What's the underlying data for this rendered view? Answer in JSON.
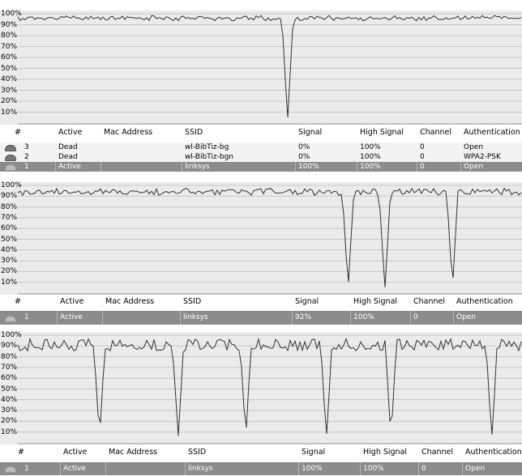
{
  "ticks": [
    "100%",
    "90%",
    "80%",
    "70%",
    "60%",
    "50%",
    "40%",
    "30%",
    "20%",
    "10%"
  ],
  "columns": [
    "#",
    "Active",
    "Mac Address",
    "SSID",
    "Signal",
    "High Signal",
    "Channel",
    "Authentication"
  ],
  "panels": [
    {
      "rows": [
        {
          "num": "3",
          "active": "Dead",
          "mac": "",
          "ssid": "wl-BibTiz-bg",
          "signal": "0%",
          "high": "100%",
          "channel": "0",
          "auth": "Open",
          "selected": false
        },
        {
          "num": "2",
          "active": "Dead",
          "mac": "",
          "ssid": "wl-BibTiz-bgn",
          "signal": "0%",
          "high": "100%",
          "channel": "0",
          "auth": "WPA2-PSK",
          "selected": false
        },
        {
          "num": "1",
          "active": "Active",
          "mac": "",
          "ssid": "linksys",
          "signal": "100%",
          "high": "100%",
          "channel": "0",
          "auth": "Open",
          "selected": true
        }
      ]
    },
    {
      "rows": [
        {
          "num": "1",
          "active": "Active",
          "mac": "",
          "ssid": "linksys",
          "signal": "92%",
          "high": "100%",
          "channel": "0",
          "auth": "Open",
          "selected": true
        }
      ]
    },
    {
      "rows": [
        {
          "num": "1",
          "active": "Active",
          "mac": "",
          "ssid": "linksys",
          "signal": "100%",
          "high": "100%",
          "channel": "0",
          "auth": "Open",
          "selected": true
        }
      ]
    }
  ],
  "chart_data": [
    {
      "type": "line",
      "ylim": [
        0,
        100
      ],
      "grid": true,
      "signal_base": [
        95,
        96,
        97
      ],
      "dropouts": [
        {
          "x": 0.535,
          "min": 2
        }
      ]
    },
    {
      "type": "line",
      "ylim": [
        0,
        100
      ],
      "grid": true,
      "signal_base": [
        92,
        94,
        96
      ],
      "dropouts": [
        {
          "x": 0.655,
          "min": 3
        },
        {
          "x": 0.728,
          "min": 3
        },
        {
          "x": 0.862,
          "min": 3
        }
      ]
    },
    {
      "type": "line",
      "ylim": [
        0,
        100
      ],
      "grid": true,
      "signal_base": [
        87,
        90,
        95
      ],
      "dropouts": [
        {
          "x": 0.162,
          "min": 4
        },
        {
          "x": 0.318,
          "min": 4
        },
        {
          "x": 0.452,
          "min": 4
        },
        {
          "x": 0.612,
          "min": 4
        },
        {
          "x": 0.74,
          "min": 4
        },
        {
          "x": 0.94,
          "min": 4
        }
      ]
    }
  ]
}
